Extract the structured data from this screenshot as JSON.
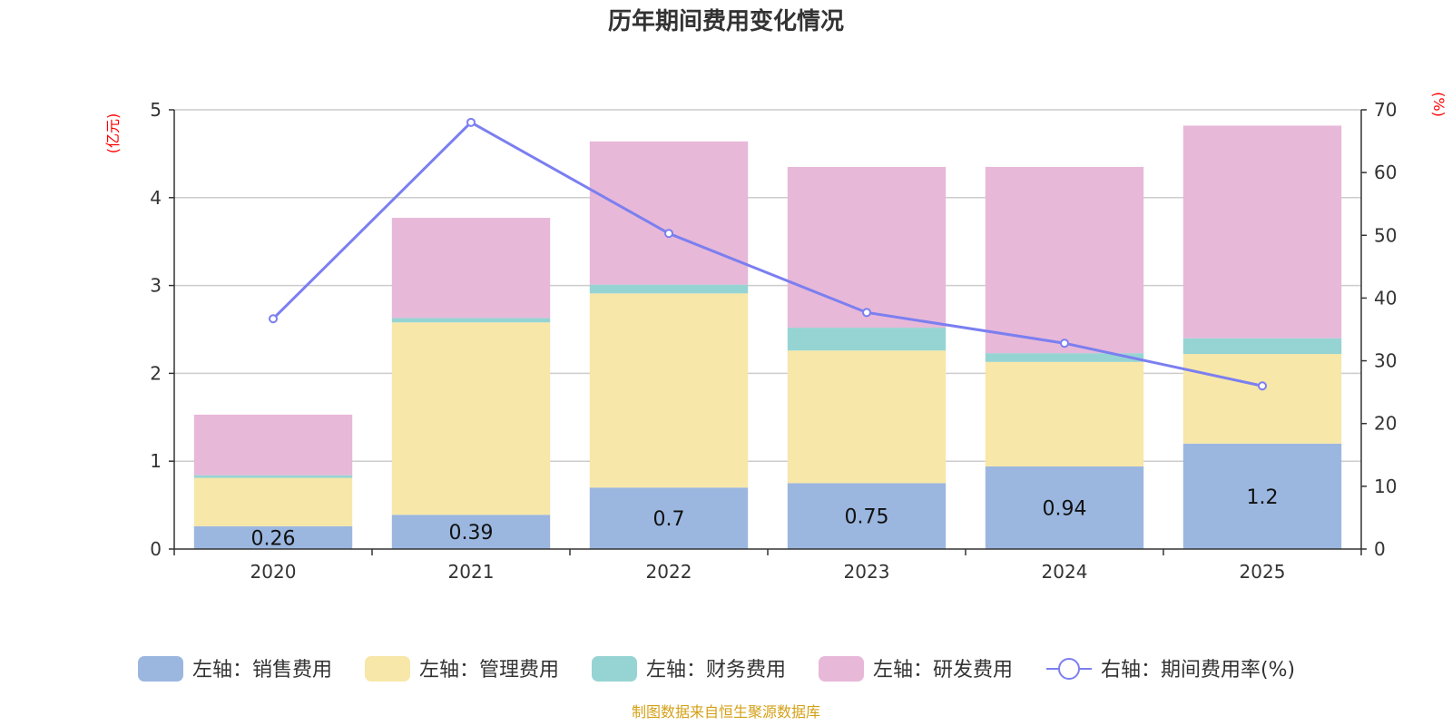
{
  "chart_data": {
    "type": "bar",
    "title": "历年期间费用变化情况",
    "categories": [
      "2020",
      "2021",
      "2022",
      "2023",
      "2024",
      "2025"
    ],
    "left_axis": {
      "unit": "(亿元)",
      "ylim": [
        0,
        5
      ],
      "ticks": [
        "0",
        "1",
        "2",
        "3",
        "4",
        "5"
      ]
    },
    "right_axis": {
      "unit": "(%)",
      "ylim": [
        0,
        70
      ],
      "ticks": [
        "0",
        "10",
        "20",
        "30",
        "40",
        "50",
        "60",
        "70"
      ]
    },
    "series": [
      {
        "name": "左轴：销售费用",
        "type": "bar",
        "axis": "left",
        "color": "#9bb7e0",
        "values": [
          0.26,
          0.39,
          0.7,
          0.75,
          0.94,
          1.2
        ],
        "labels": [
          "0.26",
          "0.39",
          "0.7",
          "0.75",
          "0.94",
          "1.2"
        ]
      },
      {
        "name": "左轴：管理费用",
        "type": "bar",
        "axis": "left",
        "color": "#f7e7a8",
        "values": [
          0.55,
          2.19,
          2.21,
          1.51,
          1.19,
          1.02
        ]
      },
      {
        "name": "左轴：财务费用",
        "type": "bar",
        "axis": "left",
        "color": "#96d4d3",
        "values": [
          0.03,
          0.05,
          0.1,
          0.26,
          0.1,
          0.18
        ]
      },
      {
        "name": "左轴：研发费用",
        "type": "bar",
        "axis": "left",
        "color": "#e7b8d8",
        "values": [
          0.69,
          1.14,
          1.63,
          1.83,
          2.12,
          2.42
        ]
      },
      {
        "name": "右轴：期间费用率(%)",
        "type": "line",
        "axis": "right",
        "color": "#7b7ff0",
        "values": [
          36.7,
          68.0,
          50.3,
          37.7,
          32.8,
          26.0
        ]
      }
    ],
    "legend_position": "bottom",
    "grid": true
  },
  "source_note": "制图数据来自恒生聚源数据库",
  "colors": {
    "axis_unit": "#ff0000",
    "source_note": "#d4a017",
    "grid": "#cccccc",
    "axis": "#333333"
  }
}
